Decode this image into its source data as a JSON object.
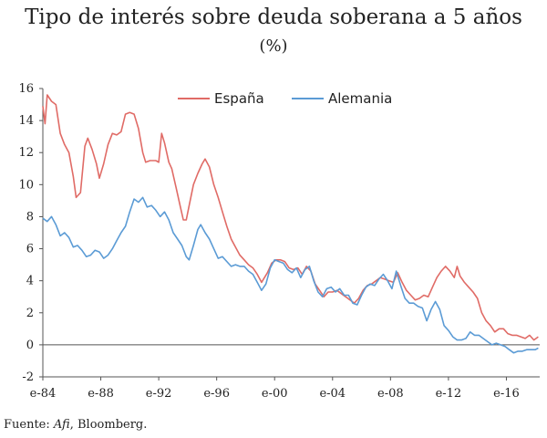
{
  "chart_data": {
    "type": "line",
    "title": "Tipo de interés sobre deuda soberana a 5 años",
    "subtitle": "(%)",
    "ylim": [
      -2,
      16
    ],
    "yticks": [
      -2,
      0,
      2,
      4,
      6,
      8,
      10,
      12,
      14,
      16
    ],
    "xlim": [
      1984.0,
      2018.3
    ],
    "xticks": [
      {
        "label": "e-84",
        "x": 1984
      },
      {
        "label": "e-88",
        "x": 1988
      },
      {
        "label": "e-92",
        "x": 1992
      },
      {
        "label": "e-96",
        "x": 1996
      },
      {
        "label": "e-00",
        "x": 2000
      },
      {
        "label": "e-04",
        "x": 2004
      },
      {
        "label": "e-08",
        "x": 2008
      },
      {
        "label": "e-12",
        "x": 2012
      },
      {
        "label": "e-16",
        "x": 2016
      }
    ],
    "grid": false,
    "legend_position": "top",
    "series": [
      {
        "name": "España",
        "color": "#e06b66",
        "points": [
          [
            1984.0,
            14.9
          ],
          [
            1984.15,
            13.8
          ],
          [
            1984.3,
            15.6
          ],
          [
            1984.6,
            15.2
          ],
          [
            1984.9,
            15.0
          ],
          [
            1985.2,
            13.2
          ],
          [
            1985.5,
            12.5
          ],
          [
            1985.8,
            12.0
          ],
          [
            1986.1,
            10.5
          ],
          [
            1986.3,
            9.2
          ],
          [
            1986.6,
            9.5
          ],
          [
            1986.9,
            12.4
          ],
          [
            1987.1,
            12.9
          ],
          [
            1987.4,
            12.2
          ],
          [
            1987.7,
            11.3
          ],
          [
            1987.9,
            10.4
          ],
          [
            1988.2,
            11.3
          ],
          [
            1988.5,
            12.5
          ],
          [
            1988.8,
            13.2
          ],
          [
            1989.1,
            13.1
          ],
          [
            1989.4,
            13.3
          ],
          [
            1989.7,
            14.4
          ],
          [
            1990.0,
            14.5
          ],
          [
            1990.3,
            14.4
          ],
          [
            1990.6,
            13.5
          ],
          [
            1990.9,
            12.0
          ],
          [
            1991.1,
            11.4
          ],
          [
            1991.4,
            11.5
          ],
          [
            1991.8,
            11.5
          ],
          [
            1992.0,
            11.4
          ],
          [
            1992.2,
            13.2
          ],
          [
            1992.4,
            12.6
          ],
          [
            1992.7,
            11.4
          ],
          [
            1992.9,
            11.0
          ],
          [
            1993.2,
            9.8
          ],
          [
            1993.5,
            8.6
          ],
          [
            1993.7,
            7.8
          ],
          [
            1993.9,
            7.8
          ],
          [
            1994.1,
            8.7
          ],
          [
            1994.4,
            10.0
          ],
          [
            1994.7,
            10.7
          ],
          [
            1995.0,
            11.3
          ],
          [
            1995.2,
            11.6
          ],
          [
            1995.5,
            11.1
          ],
          [
            1995.8,
            10.0
          ],
          [
            1996.1,
            9.2
          ],
          [
            1996.4,
            8.3
          ],
          [
            1996.7,
            7.4
          ],
          [
            1997.0,
            6.6
          ],
          [
            1997.3,
            6.1
          ],
          [
            1997.6,
            5.6
          ],
          [
            1997.9,
            5.3
          ],
          [
            1998.2,
            5.0
          ],
          [
            1998.5,
            4.8
          ],
          [
            1998.8,
            4.4
          ],
          [
            1999.1,
            3.9
          ],
          [
            1999.5,
            4.5
          ],
          [
            1999.8,
            5.1
          ],
          [
            2000.1,
            5.3
          ],
          [
            2000.4,
            5.3
          ],
          [
            2000.7,
            5.2
          ],
          [
            2001.0,
            4.8
          ],
          [
            2001.3,
            4.7
          ],
          [
            2001.6,
            4.8
          ],
          [
            2001.9,
            4.4
          ],
          [
            2002.2,
            4.9
          ],
          [
            2002.5,
            4.6
          ],
          [
            2002.8,
            3.8
          ],
          [
            2003.1,
            3.4
          ],
          [
            2003.4,
            3.0
          ],
          [
            2003.7,
            3.3
          ],
          [
            2004.0,
            3.3
          ],
          [
            2004.3,
            3.4
          ],
          [
            2004.6,
            3.2
          ],
          [
            2004.9,
            3.0
          ],
          [
            2005.2,
            2.8
          ],
          [
            2005.5,
            2.6
          ],
          [
            2005.8,
            2.9
          ],
          [
            2006.1,
            3.4
          ],
          [
            2006.4,
            3.7
          ],
          [
            2006.7,
            3.8
          ],
          [
            2007.0,
            4.0
          ],
          [
            2007.3,
            4.2
          ],
          [
            2007.6,
            4.1
          ],
          [
            2007.9,
            4.0
          ],
          [
            2008.2,
            3.9
          ],
          [
            2008.5,
            4.5
          ],
          [
            2008.8,
            3.9
          ],
          [
            2009.1,
            3.4
          ],
          [
            2009.4,
            3.1
          ],
          [
            2009.7,
            2.8
          ],
          [
            2010.0,
            2.9
          ],
          [
            2010.3,
            3.1
          ],
          [
            2010.6,
            3.0
          ],
          [
            2010.9,
            3.6
          ],
          [
            2011.2,
            4.2
          ],
          [
            2011.5,
            4.6
          ],
          [
            2011.8,
            4.9
          ],
          [
            2012.1,
            4.6
          ],
          [
            2012.4,
            4.2
          ],
          [
            2012.6,
            4.9
          ],
          [
            2012.8,
            4.3
          ],
          [
            2013.1,
            3.9
          ],
          [
            2013.4,
            3.6
          ],
          [
            2013.7,
            3.3
          ],
          [
            2014.0,
            2.9
          ],
          [
            2014.3,
            2.0
          ],
          [
            2014.6,
            1.5
          ],
          [
            2014.9,
            1.2
          ],
          [
            2015.2,
            0.8
          ],
          [
            2015.5,
            1.0
          ],
          [
            2015.8,
            1.0
          ],
          [
            2016.1,
            0.7
          ],
          [
            2016.4,
            0.6
          ],
          [
            2016.7,
            0.6
          ],
          [
            2017.0,
            0.5
          ],
          [
            2017.3,
            0.4
          ],
          [
            2017.6,
            0.6
          ],
          [
            2017.9,
            0.3
          ],
          [
            2018.2,
            0.5
          ]
        ]
      },
      {
        "name": "Alemania",
        "color": "#5b9bd5",
        "points": [
          [
            1984.0,
            7.9
          ],
          [
            1984.3,
            7.7
          ],
          [
            1984.6,
            8.0
          ],
          [
            1984.9,
            7.5
          ],
          [
            1985.2,
            6.8
          ],
          [
            1985.5,
            7.0
          ],
          [
            1985.8,
            6.7
          ],
          [
            1986.1,
            6.1
          ],
          [
            1986.4,
            6.2
          ],
          [
            1986.7,
            5.9
          ],
          [
            1987.0,
            5.5
          ],
          [
            1987.3,
            5.6
          ],
          [
            1987.6,
            5.9
          ],
          [
            1987.9,
            5.8
          ],
          [
            1988.2,
            5.4
          ],
          [
            1988.5,
            5.6
          ],
          [
            1988.8,
            6.0
          ],
          [
            1989.1,
            6.5
          ],
          [
            1989.4,
            7.0
          ],
          [
            1989.7,
            7.4
          ],
          [
            1990.0,
            8.3
          ],
          [
            1990.3,
            9.1
          ],
          [
            1990.6,
            8.9
          ],
          [
            1990.9,
            9.2
          ],
          [
            1991.2,
            8.6
          ],
          [
            1991.5,
            8.7
          ],
          [
            1991.8,
            8.4
          ],
          [
            1992.1,
            8.0
          ],
          [
            1992.4,
            8.3
          ],
          [
            1992.7,
            7.8
          ],
          [
            1993.0,
            7.0
          ],
          [
            1993.3,
            6.6
          ],
          [
            1993.6,
            6.2
          ],
          [
            1993.9,
            5.5
          ],
          [
            1994.1,
            5.3
          ],
          [
            1994.4,
            6.2
          ],
          [
            1994.7,
            7.2
          ],
          [
            1994.9,
            7.5
          ],
          [
            1995.2,
            7.0
          ],
          [
            1995.5,
            6.6
          ],
          [
            1995.8,
            6.0
          ],
          [
            1996.1,
            5.4
          ],
          [
            1996.4,
            5.5
          ],
          [
            1996.7,
            5.2
          ],
          [
            1997.0,
            4.9
          ],
          [
            1997.3,
            5.0
          ],
          [
            1997.6,
            4.9
          ],
          [
            1997.9,
            4.9
          ],
          [
            1998.2,
            4.6
          ],
          [
            1998.5,
            4.4
          ],
          [
            1998.8,
            3.9
          ],
          [
            1999.1,
            3.4
          ],
          [
            1999.4,
            3.8
          ],
          [
            1999.7,
            4.8
          ],
          [
            2000.0,
            5.3
          ],
          [
            2000.3,
            5.2
          ],
          [
            2000.6,
            5.1
          ],
          [
            2000.9,
            4.7
          ],
          [
            2001.2,
            4.5
          ],
          [
            2001.5,
            4.8
          ],
          [
            2001.8,
            4.2
          ],
          [
            2002.1,
            4.7
          ],
          [
            2002.4,
            4.9
          ],
          [
            2002.7,
            4.0
          ],
          [
            2003.0,
            3.3
          ],
          [
            2003.3,
            3.0
          ],
          [
            2003.6,
            3.5
          ],
          [
            2003.9,
            3.6
          ],
          [
            2004.2,
            3.3
          ],
          [
            2004.5,
            3.5
          ],
          [
            2004.8,
            3.1
          ],
          [
            2005.1,
            3.1
          ],
          [
            2005.4,
            2.6
          ],
          [
            2005.7,
            2.5
          ],
          [
            2006.0,
            3.1
          ],
          [
            2006.3,
            3.6
          ],
          [
            2006.6,
            3.8
          ],
          [
            2006.9,
            3.7
          ],
          [
            2007.2,
            4.1
          ],
          [
            2007.5,
            4.4
          ],
          [
            2007.8,
            4.0
          ],
          [
            2008.1,
            3.5
          ],
          [
            2008.4,
            4.6
          ],
          [
            2008.7,
            3.7
          ],
          [
            2009.0,
            2.9
          ],
          [
            2009.3,
            2.6
          ],
          [
            2009.6,
            2.6
          ],
          [
            2009.9,
            2.4
          ],
          [
            2010.2,
            2.3
          ],
          [
            2010.5,
            1.5
          ],
          [
            2010.8,
            2.2
          ],
          [
            2011.1,
            2.7
          ],
          [
            2011.4,
            2.2
          ],
          [
            2011.7,
            1.2
          ],
          [
            2012.0,
            0.9
          ],
          [
            2012.3,
            0.5
          ],
          [
            2012.6,
            0.3
          ],
          [
            2012.9,
            0.3
          ],
          [
            2013.2,
            0.4
          ],
          [
            2013.5,
            0.8
          ],
          [
            2013.8,
            0.6
          ],
          [
            2014.1,
            0.6
          ],
          [
            2014.4,
            0.4
          ],
          [
            2014.7,
            0.2
          ],
          [
            2015.0,
            0.0
          ],
          [
            2015.3,
            0.1
          ],
          [
            2015.6,
            0.0
          ],
          [
            2015.9,
            -0.1
          ],
          [
            2016.2,
            -0.3
          ],
          [
            2016.5,
            -0.5
          ],
          [
            2016.8,
            -0.4
          ],
          [
            2017.1,
            -0.4
          ],
          [
            2017.4,
            -0.3
          ],
          [
            2017.7,
            -0.3
          ],
          [
            2018.0,
            -0.3
          ],
          [
            2018.2,
            -0.2
          ]
        ]
      }
    ]
  },
  "source": {
    "prefix": "Fuente: ",
    "italic": "Afi",
    "suffix": ", Bloomberg."
  }
}
